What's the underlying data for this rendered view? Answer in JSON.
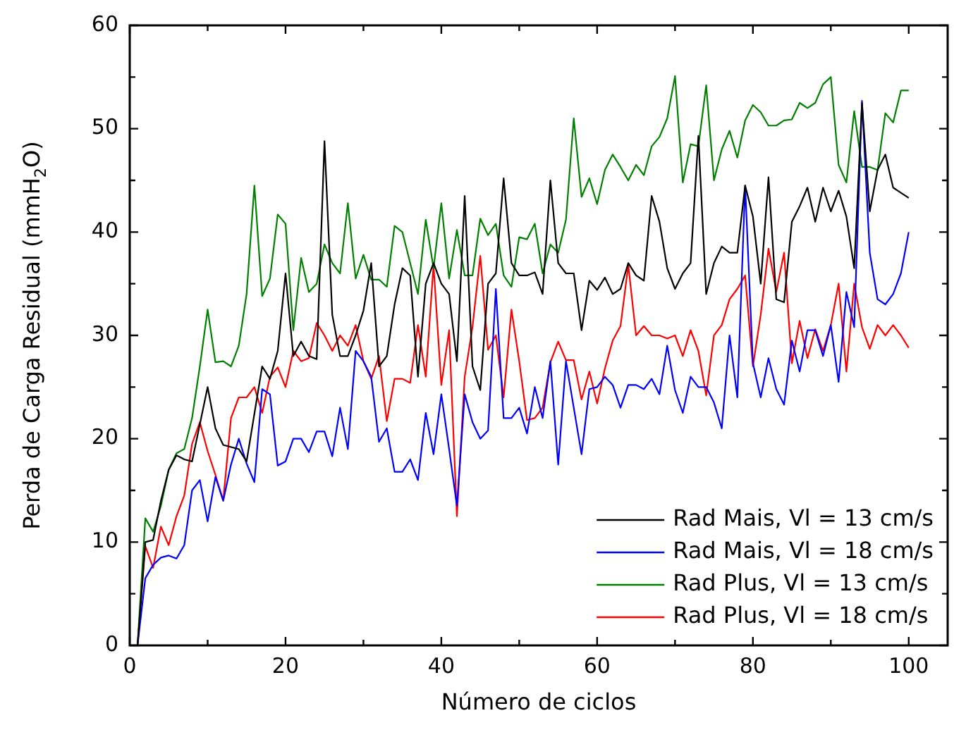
{
  "chart_data": {
    "type": "line",
    "xlabel": "Número de ciclos",
    "ylabel": "Perda de Carga Residual (mmH$_{2}$O)",
    "xlim": [
      0,
      105
    ],
    "ylim": [
      0,
      60
    ],
    "xticks": [
      0,
      {
        "value": 10,
        "label": null
      },
      20,
      {
        "value": 30,
        "label": null
      },
      40,
      {
        "value": 50,
        "label": null
      },
      60,
      {
        "value": 70,
        "label": null
      },
      80,
      {
        "value": 90,
        "label": null
      },
      100
    ],
    "yticks": [
      0,
      {
        "value": 5,
        "label": null
      },
      10,
      {
        "value": 15,
        "label": null
      },
      20,
      {
        "value": 25,
        "label": null
      },
      30,
      {
        "value": 35,
        "label": null
      },
      40,
      {
        "value": 45,
        "label": null
      },
      50,
      {
        "value": 55,
        "label": null
      },
      60
    ],
    "grid": false,
    "legend": "bottom right",
    "marker": "none",
    "line_style": "solid",
    "series": [
      {
        "name": "Rad Mais, Vl = 13 cm/s",
        "color": "#000000",
        "x": [
          1,
          2,
          3,
          4,
          5,
          6,
          7,
          8,
          10,
          11,
          12,
          14,
          15,
          17,
          18,
          19,
          20,
          21,
          22,
          23,
          24,
          25,
          26,
          27,
          28,
          29,
          30,
          31,
          32,
          33,
          34,
          35,
          36,
          37,
          38,
          39,
          40,
          41,
          42,
          43,
          44,
          45,
          46,
          47,
          48,
          49,
          50,
          51,
          52,
          53,
          54,
          55,
          56,
          57,
          58,
          59,
          60,
          61,
          62,
          63,
          64,
          65,
          66,
          67,
          68,
          69,
          70,
          71,
          72,
          73,
          74,
          75,
          76,
          77,
          78,
          79,
          80,
          81,
          82,
          83,
          84,
          85,
          86,
          87,
          88,
          89,
          90,
          91,
          92,
          93,
          94,
          95,
          96,
          97,
          98,
          99,
          100
        ],
        "values": [
          0,
          10,
          10.2,
          14,
          17,
          18.4,
          18,
          17.8,
          25,
          21,
          19.4,
          19,
          17.8,
          27,
          25.8,
          28.5,
          36,
          28,
          29.4,
          28,
          27.7,
          48.8,
          32,
          28,
          28,
          30,
          32.4,
          37,
          27,
          28,
          33,
          36.5,
          35.8,
          26,
          35,
          37,
          35,
          34,
          27.5,
          43.5,
          27,
          24.7,
          35,
          36,
          45.2,
          37,
          35.8,
          35.8,
          36.1,
          34,
          45,
          37,
          36,
          36,
          30.5,
          35.3,
          34.4,
          35.6,
          34,
          34.5,
          37,
          35.8,
          35.3,
          43.5,
          41,
          36.5,
          34.5,
          36,
          37,
          49.3,
          34,
          37,
          38.6,
          38,
          38,
          44.5,
          41.5,
          35,
          45.3,
          33.5,
          33.2,
          41,
          42.5,
          44.3,
          41,
          44.3,
          42,
          44,
          41.5,
          36.5,
          52.5,
          42,
          46,
          47.5,
          44.3,
          43.8,
          43.3
        ]
      },
      {
        "name": "Rad Mais, Vl = 18 cm/s",
        "color": "#0000ff",
        "x": [
          1,
          2,
          3,
          4,
          5,
          6,
          7,
          8,
          9,
          10,
          11,
          12,
          13,
          14,
          15,
          16,
          17,
          18,
          19,
          20,
          21,
          22,
          23,
          24,
          25,
          26,
          27,
          28,
          29,
          30,
          31,
          32,
          33,
          34,
          35,
          36,
          37,
          38,
          39,
          40,
          41,
          42,
          43,
          44,
          45,
          46,
          47,
          48,
          49,
          50,
          51,
          52,
          53,
          54,
          55,
          56,
          57,
          58,
          59,
          60,
          61,
          62,
          63,
          64,
          65,
          66,
          67,
          68,
          69,
          70,
          71,
          72,
          73,
          74,
          75,
          76,
          77,
          78,
          79,
          80,
          81,
          82,
          83,
          84,
          85,
          86,
          87,
          88,
          89,
          90,
          91,
          92,
          93,
          94,
          95,
          96,
          97,
          98,
          99,
          100
        ],
        "values": [
          0,
          6.5,
          7.8,
          8.5,
          8.7,
          8.4,
          9.7,
          15,
          16,
          12,
          16.3,
          14,
          17.5,
          20,
          17.6,
          15.8,
          24.8,
          24.3,
          17.4,
          17.8,
          20,
          20,
          18.7,
          20.7,
          20.7,
          18.3,
          23,
          19,
          28.5,
          27.5,
          26,
          19.7,
          21,
          16.8,
          16.8,
          18,
          16,
          22.5,
          18.5,
          24.3,
          19,
          13.5,
          24.3,
          21.6,
          20,
          20.8,
          34.5,
          22,
          22,
          23,
          20.5,
          25,
          22,
          27.5,
          17.5,
          27.5,
          23,
          18.5,
          24.8,
          25,
          26,
          25.2,
          23,
          25.2,
          25.2,
          24.8,
          25.8,
          24.3,
          29,
          24.7,
          22.5,
          26,
          25,
          25,
          23.5,
          21,
          30,
          24,
          44.5,
          27.3,
          24,
          27.8,
          24.8,
          23.3,
          29.5,
          26.5,
          30.5,
          30.5,
          28,
          31,
          25.5,
          34.2,
          30.8,
          52.7,
          38,
          33.5,
          33,
          34,
          36,
          40
        ]
      },
      {
        "name": "Rad Plus, Vl = 13 cm/s",
        "color": "#008000",
        "x": [
          1,
          2,
          3,
          4,
          5,
          6,
          7,
          8,
          9,
          10,
          11,
          12,
          13,
          14,
          15,
          16,
          17,
          18,
          19,
          20,
          21,
          22,
          23,
          24,
          25,
          26,
          27,
          28,
          29,
          30,
          31,
          32,
          33,
          34,
          35,
          36,
          37,
          38,
          39,
          40,
          41,
          42,
          43,
          44,
          45,
          46,
          47,
          48,
          49,
          50,
          51,
          52,
          53,
          54,
          55,
          56,
          57,
          58,
          59,
          60,
          61,
          62,
          63,
          64,
          65,
          66,
          67,
          68,
          69,
          70,
          71,
          72,
          73,
          74,
          75,
          76,
          77,
          78,
          79,
          80,
          81,
          82,
          83,
          84,
          85,
          86,
          87,
          88,
          89,
          90,
          91,
          92,
          93,
          94,
          95,
          96,
          97,
          98,
          99,
          100
        ],
        "values": [
          0,
          12.3,
          11,
          13.5,
          17,
          18.6,
          19,
          22,
          27,
          32.5,
          27.4,
          27.5,
          27,
          29,
          34,
          44.5,
          33.8,
          35.5,
          41.7,
          40.8,
          30.5,
          37.5,
          34.2,
          35,
          38.8,
          37,
          36,
          42.8,
          35.5,
          37.8,
          35.4,
          35.4,
          34.7,
          40.6,
          40,
          37,
          34,
          41.2,
          36.5,
          42.8,
          35.5,
          40.2,
          35.8,
          35.8,
          41.3,
          39.7,
          40.8,
          35.8,
          34.7,
          39.5,
          39.3,
          40.8,
          36,
          38.8,
          38,
          41.2,
          51,
          43.4,
          45.2,
          42.7,
          46,
          47.5,
          46.3,
          45,
          46.5,
          45.5,
          48.3,
          49.2,
          51,
          55.1,
          44.8,
          48.5,
          48.3,
          54.2,
          45,
          48,
          49.8,
          47.2,
          50.8,
          52.3,
          51.6,
          50.3,
          50.3,
          50.8,
          50.9,
          52.5,
          52,
          52.5,
          54.3,
          55,
          46.5,
          44.8,
          51.7,
          46.3,
          46.3,
          46,
          51.5,
          50.6,
          53.7,
          53.7
        ]
      },
      {
        "name": "Rad Plus, Vl = 18 cm/s",
        "color": "#ff0000",
        "x": [
          1,
          2,
          3,
          4,
          5,
          6,
          7,
          8,
          9,
          10,
          11,
          12,
          13,
          14,
          15,
          16,
          17,
          18,
          19,
          20,
          21,
          22,
          23,
          24,
          25,
          26,
          27,
          28,
          29,
          30,
          31,
          32,
          33,
          34,
          35,
          36,
          37,
          38,
          39,
          40,
          41,
          42,
          43,
          44,
          45,
          46,
          47,
          48,
          49,
          50,
          51,
          52,
          53,
          54,
          55,
          56,
          57,
          58,
          59,
          60,
          61,
          62,
          63,
          64,
          65,
          66,
          67,
          68,
          69,
          70,
          71,
          72,
          73,
          74,
          75,
          76,
          77,
          78,
          79,
          80,
          81,
          82,
          83,
          84,
          85,
          86,
          87,
          88,
          89,
          90,
          91,
          92,
          93,
          94,
          95,
          96,
          97,
          98,
          99,
          100
        ],
        "values": [
          0,
          9.6,
          7.5,
          11.5,
          9.7,
          12.5,
          14.5,
          19.5,
          21.6,
          18.8,
          16.5,
          14,
          22,
          24,
          24,
          25,
          22.5,
          26,
          26.9,
          25,
          28.5,
          27.5,
          27.8,
          31.2,
          30,
          28.5,
          30,
          29,
          31,
          27.5,
          25.8,
          28,
          21.7,
          25.8,
          25.8,
          25.4,
          31,
          26,
          36.8,
          25.2,
          30.5,
          12.5,
          26,
          30.8,
          37.7,
          28.6,
          30,
          24,
          32.5,
          27.5,
          21.8,
          22,
          23,
          27.4,
          29.4,
          27.6,
          27.6,
          23.8,
          26.5,
          23.4,
          26.8,
          29.5,
          30.9,
          36.8,
          30,
          30.9,
          30,
          30,
          29.7,
          30,
          28,
          30.5,
          28.5,
          24.2,
          30,
          31,
          33.5,
          34.5,
          35.8,
          27,
          32,
          38.4,
          34.2,
          38,
          27.3,
          31.4,
          27.8,
          30.6,
          28.5,
          31,
          35,
          26.5,
          35,
          30.8,
          28.7,
          31,
          30,
          31,
          30,
          28.8
        ]
      }
    ]
  }
}
